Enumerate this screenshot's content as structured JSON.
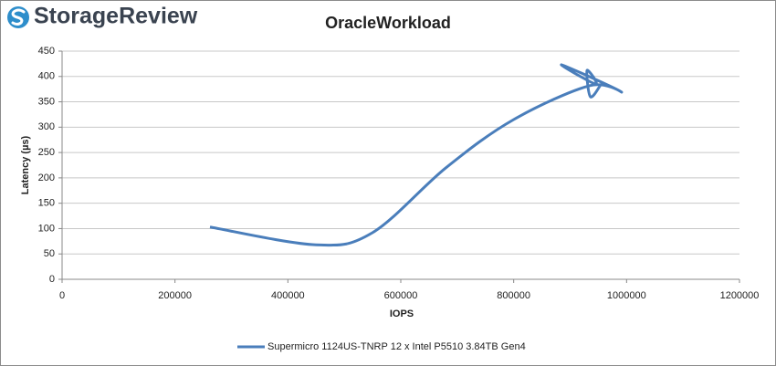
{
  "logo_text": "StorageReview",
  "chart_data": {
    "type": "line",
    "title": "OracleWorkload",
    "xlabel": "IOPS",
    "ylabel": "Latency (µs)",
    "xlim": [
      0,
      1200000
    ],
    "xticks": [
      0,
      200000,
      400000,
      600000,
      800000,
      1000000,
      1200000
    ],
    "ylim": [
      0,
      450
    ],
    "yticks": [
      0,
      50,
      100,
      150,
      200,
      250,
      300,
      350,
      400,
      450
    ],
    "grid": true,
    "legend": "bottom",
    "series": [
      {
        "name": "Supermicro 1124US-TNRP 12 x Intel P5510 3.84TB Gen4",
        "color": "#4a7ebb",
        "x": [
          262000,
          450000,
          550000,
          680000,
          800000,
          935000,
          990000,
          885000,
          945000,
          930000,
          936000,
          955000
        ],
        "values": [
          103,
          68,
          92,
          220,
          315,
          382,
          370,
          423,
          385,
          412,
          360,
          385
        ]
      }
    ]
  }
}
